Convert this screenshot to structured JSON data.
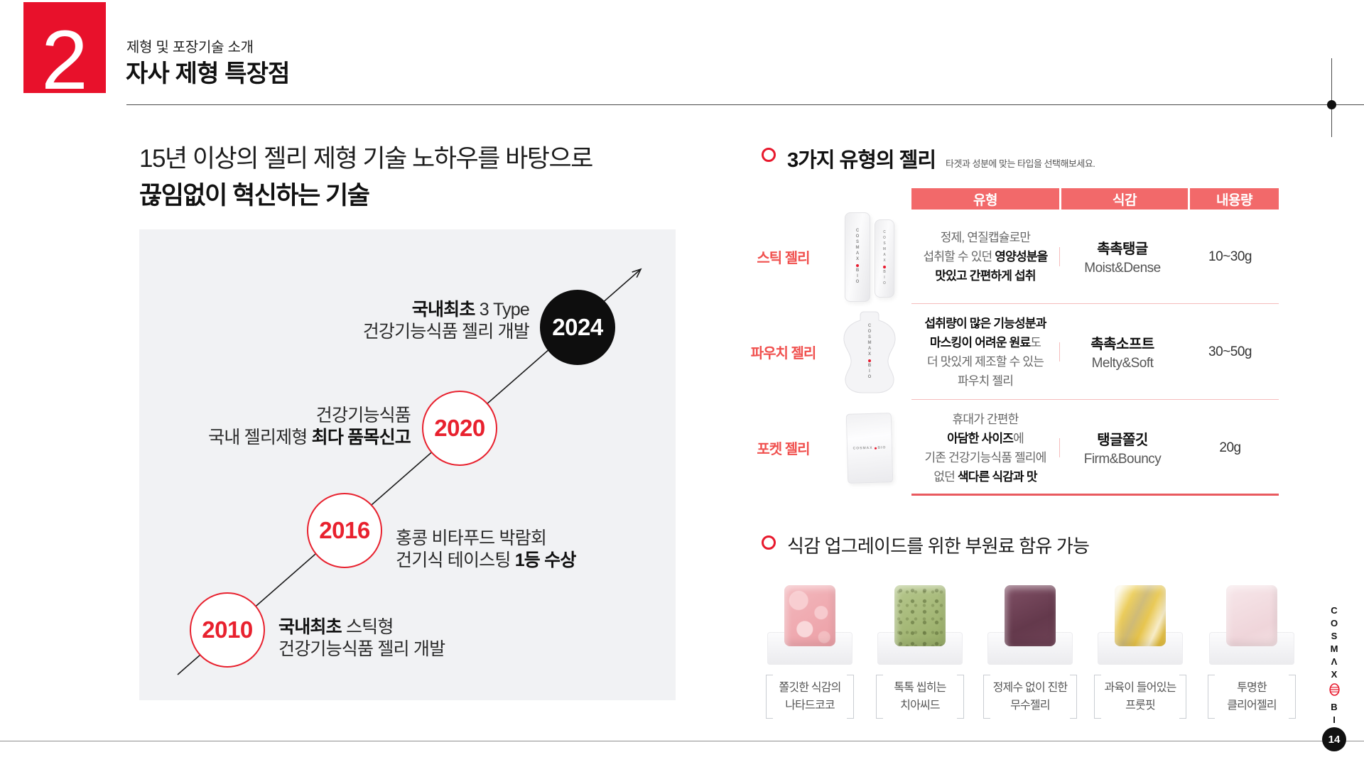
{
  "header": {
    "section_number": "2",
    "subtitle": "제형 및 포장기술 소개",
    "title": "자사 제형 특장점"
  },
  "intro": {
    "line1": "15년 이상의 젤리 제형 기술 노하우를 바탕으로",
    "line2": "끊임없이 혁신하는 기술"
  },
  "timeline": {
    "items": [
      {
        "year": "2010",
        "variant": "outline",
        "lines": [
          [
            {
              "t": "국내최초",
              "b": true
            },
            {
              "t": " 스틱형",
              "b": false
            }
          ],
          [
            {
              "t": "건강기능식품 젤리 개발",
              "b": false
            }
          ]
        ]
      },
      {
        "year": "2016",
        "variant": "outline",
        "lines": [
          [
            {
              "t": "홍콩 비타푸드 박람회",
              "b": false
            }
          ],
          [
            {
              "t": "건기식 테이스팅 ",
              "b": false
            },
            {
              "t": "1등 수상",
              "b": true
            }
          ]
        ]
      },
      {
        "year": "2020",
        "variant": "outline",
        "lines": [
          [
            {
              "t": "건강기능식품",
              "b": false
            }
          ],
          [
            {
              "t": "국내 젤리제형 ",
              "b": false
            },
            {
              "t": "최다 품목신고",
              "b": true
            }
          ]
        ]
      },
      {
        "year": "2024",
        "variant": "filled",
        "lines": [
          [
            {
              "t": "국내최초",
              "b": true
            },
            {
              "t": " 3 Type",
              "b": false
            }
          ],
          [
            {
              "t": "건강기능식품 젤리 개발",
              "b": false
            }
          ]
        ]
      }
    ]
  },
  "jelly_section": {
    "heading": "3가지 유형의 젤리",
    "subtext": "타겟과 성분에 맞는 타입을 선택해보세요.",
    "columns": [
      "유형",
      "식감",
      "내용량"
    ],
    "rows": [
      {
        "label": "스틱 젤리",
        "product": "stick",
        "desc": [
          [
            {
              "t": "정제, 연질캡슐로만",
              "b": false
            }
          ],
          [
            {
              "t": "섭취할 수 있던 ",
              "b": false
            },
            {
              "t": "영양성분을",
              "b": true
            }
          ],
          [
            {
              "t": "맛있고 간편하게 섭취",
              "b": true
            }
          ]
        ],
        "texture_kr": "촉촉탱글",
        "texture_en": "Moist&Dense",
        "amount": "10~30g"
      },
      {
        "label": "파우치 젤리",
        "product": "pouch",
        "desc": [
          [
            {
              "t": "섭취량이 많은 기능성분과",
              "b": true
            }
          ],
          [
            {
              "t": "마스킹이 어려운 원료",
              "b": true
            },
            {
              "t": "도",
              "b": false
            }
          ],
          [
            {
              "t": "더 맛있게 제조할 수 있는",
              "b": false
            }
          ],
          [
            {
              "t": "파우치 젤리",
              "b": false
            }
          ]
        ],
        "texture_kr": "촉촉소프트",
        "texture_en": "Melty&Soft",
        "amount": "30~50g"
      },
      {
        "label": "포켓 젤리",
        "product": "pocket",
        "desc": [
          [
            {
              "t": "휴대가 간편한",
              "b": false
            }
          ],
          [
            {
              "t": "아담한 사이즈",
              "b": true
            },
            {
              "t": "에",
              "b": false
            }
          ],
          [
            {
              "t": "기존 건강기능식품 젤리에",
              "b": false
            }
          ],
          [
            {
              "t": "없던 ",
              "b": false
            },
            {
              "t": "색다른 식감과 맛",
              "b": true
            }
          ]
        ],
        "texture_kr": "탱글쫄깃",
        "texture_en": "Firm&Bouncy",
        "amount": "20g"
      }
    ]
  },
  "ingredients_section": {
    "heading": "식감 업그레이드를 위한 부원료 함유 가능",
    "items": [
      {
        "line1": "쫄깃한 식감의",
        "line2": "나타드코코",
        "jelly": "pink-marble"
      },
      {
        "line1": "톡톡 씹히는",
        "line2": "치아씨드",
        "jelly": "green-seed"
      },
      {
        "line1": "정제수 없이 진한",
        "line2": "무수젤리",
        "jelly": "plum"
      },
      {
        "line1": "과육이 들어있는",
        "line2": "프룻핏",
        "jelly": "yellow-marble"
      },
      {
        "line1": "투명한",
        "line2": "클리어젤리",
        "jelly": "clear-pink"
      }
    ]
  },
  "brand": {
    "word1": "COSMAX",
    "word2": "BIO"
  },
  "page": {
    "number": "14"
  },
  "colors": {
    "accent_red": "#E8192D",
    "table_header": "#F2696A",
    "row_label": "#F0504E",
    "panel_gray": "#F1F2F4"
  }
}
